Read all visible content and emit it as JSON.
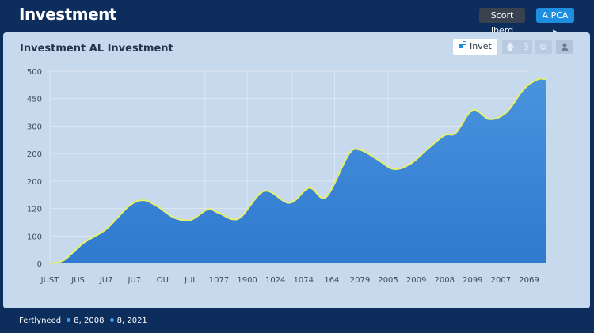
{
  "header": {
    "title": "Investment",
    "sort_label": "Scort lberd",
    "apca_label": "A PCA",
    "apca_icon": "play-right-icon"
  },
  "card": {
    "title": "Investment AL Investment",
    "toolbar": {
      "invet_label": "Invet",
      "invet_icon": "link-nodes-icon",
      "up_count": "3",
      "icons": [
        "arrow-up-icon",
        "gear-icon",
        "user-icon"
      ]
    }
  },
  "chart_data": {
    "type": "area",
    "y_ticks": [
      "0",
      "100",
      "120",
      "200",
      "200",
      "300",
      "450",
      "500"
    ],
    "x_ticks": [
      "JUST",
      "JUS",
      "JU7",
      "JU7",
      "OU",
      "JUL",
      "1077",
      "1900",
      "1024",
      "1074",
      "164",
      "2079",
      "2005",
      "2009",
      "2008",
      "2099",
      "2007",
      "2069"
    ],
    "grid": true,
    "line_color": "#e6f06a",
    "fill_color": "#3a86d6",
    "points": [
      {
        "x": 0,
        "y": 0
      },
      {
        "x": 0.5,
        "y": 7
      },
      {
        "x": 1.2,
        "y": 45
      },
      {
        "x": 2.0,
        "y": 75
      },
      {
        "x": 2.8,
        "y": 125
      },
      {
        "x": 3.3,
        "y": 138
      },
      {
        "x": 3.8,
        "y": 125
      },
      {
        "x": 4.4,
        "y": 100
      },
      {
        "x": 5.0,
        "y": 95
      },
      {
        "x": 5.6,
        "y": 118
      },
      {
        "x": 6.0,
        "y": 110
      },
      {
        "x": 6.7,
        "y": 98
      },
      {
        "x": 7.6,
        "y": 158
      },
      {
        "x": 8.5,
        "y": 132
      },
      {
        "x": 9.2,
        "y": 165
      },
      {
        "x": 9.8,
        "y": 145
      },
      {
        "x": 10.6,
        "y": 238
      },
      {
        "x": 11.0,
        "y": 248
      },
      {
        "x": 11.6,
        "y": 228
      },
      {
        "x": 12.2,
        "y": 206
      },
      {
        "x": 12.8,
        "y": 218
      },
      {
        "x": 13.4,
        "y": 250
      },
      {
        "x": 14.0,
        "y": 280
      },
      {
        "x": 14.4,
        "y": 285
      },
      {
        "x": 15.0,
        "y": 335
      },
      {
        "x": 15.6,
        "y": 315
      },
      {
        "x": 16.2,
        "y": 330
      },
      {
        "x": 16.8,
        "y": 380
      },
      {
        "x": 17.3,
        "y": 402
      },
      {
        "x": 17.6,
        "y": 402
      }
    ]
  },
  "footer": {
    "label": "Fertlyneed",
    "items": [
      "8, 2008",
      "8, 2021"
    ]
  }
}
